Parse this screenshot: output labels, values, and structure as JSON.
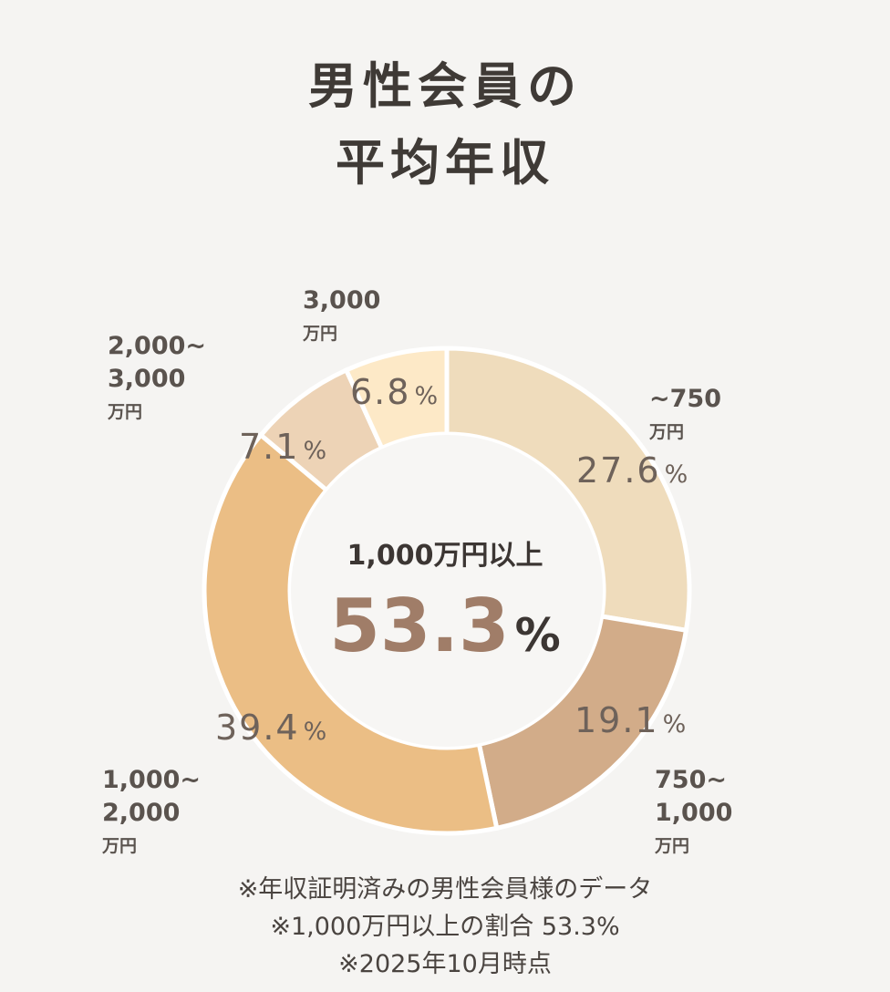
{
  "title": {
    "line1": "男性会員の",
    "line2": "平均年収"
  },
  "chart_data": {
    "type": "pie",
    "title": "男性会員の平均年収",
    "unit": "%",
    "slices": [
      {
        "cat_line1": "~750",
        "cat_line2": "",
        "unit": "万円",
        "value": 27.6,
        "value_label": "27.6",
        "color": "#efdcbc"
      },
      {
        "cat_line1": "750~",
        "cat_line2": "1,000",
        "unit": "万円",
        "value": 19.1,
        "value_label": "19.1",
        "color": "#d2ac89"
      },
      {
        "cat_line1": "1,000~",
        "cat_line2": "2,000",
        "unit": "万円",
        "value": 39.4,
        "value_label": "39.4",
        "color": "#ebbe85"
      },
      {
        "cat_line1": "2,000~",
        "cat_line2": "3,000",
        "unit": "万円",
        "value": 7.1,
        "value_label": "7.1",
        "color": "#edd3b6"
      },
      {
        "cat_line1": "3,000",
        "cat_line2": "",
        "unit": "万円",
        "value": 6.8,
        "value_label": "6.8",
        "color": "#fde9c7"
      }
    ],
    "center": {
      "label": "1,000万円以上",
      "value": "53.3",
      "unit": "%"
    }
  },
  "notes": [
    "※年収証明済みの男性会員様のデータ",
    "※1,000万円以上の割合  53.3%",
    "※2025年10月時点"
  ]
}
